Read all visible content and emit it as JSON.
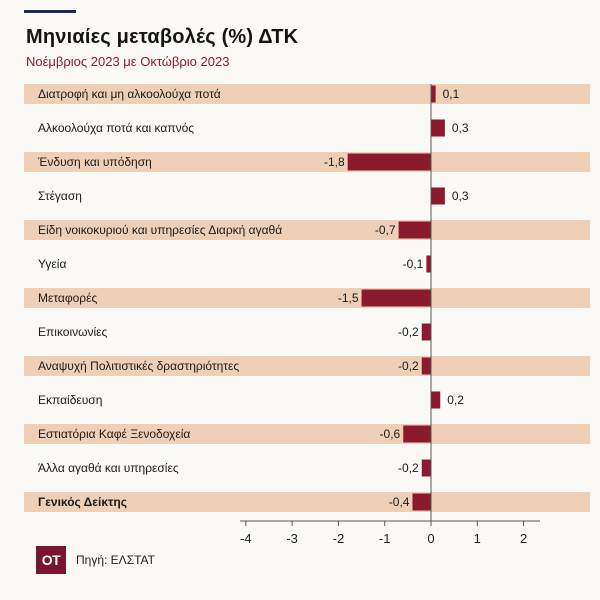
{
  "header": {
    "title": "Μηνιαίες μεταβολές (%) ΔΤΚ",
    "subtitle": "Νοέμβριος 2023 με Οκτώβριο 2023"
  },
  "footer": {
    "logo_text": "OT",
    "source": "Πηγή: ΕΛΣΤΑΤ"
  },
  "colors": {
    "bar": "#8c1a2e",
    "band": "#efcfb6",
    "axis": "#555555"
  },
  "chart_data": {
    "type": "bar",
    "orientation": "horizontal",
    "title": "Μηνιαίες μεταβολές (%) ΔΤΚ",
    "subtitle": "Νοέμβριος 2023 με Οκτώβριο 2023",
    "categories": [
      "Διατροφή και μη αλκοολούχα ποτά",
      "Αλκοολούχα ποτά και καπνός",
      "Ένδυση και υπόδηση",
      "Στέγαση",
      "Είδη νοικοκυριού και υπηρεσίες   Διαρκή αγαθά",
      "Υγεία",
      "Μεταφορές",
      "Επικοινωνίες",
      "Αναψυχή  Πολιτιστικές δραστηριότητες",
      "Εκπαίδευση",
      "Εστιατόρια   Καφέ   Ξενοδοχεία",
      "Άλλα αγαθά και υπηρεσίες",
      "Γενικός Δείκτης"
    ],
    "values": [
      0.1,
      0.3,
      -1.8,
      0.3,
      -0.7,
      -0.1,
      -1.5,
      -0.2,
      -0.2,
      0.2,
      -0.6,
      -0.2,
      -0.4
    ],
    "value_labels": [
      "0,1",
      "0,3",
      "-1,8",
      "0,3",
      "-0,7",
      "-0,1",
      "-1,5",
      "-0,2",
      "-0,2",
      "0,2",
      "-0,6",
      "-0,2",
      "-0,4"
    ],
    "bold_category": "Γενικός Δείκτης",
    "xlim": [
      -4,
      2
    ],
    "xticks": [
      -4,
      -3,
      -2,
      -1,
      0,
      1,
      2
    ],
    "xtick_labels": [
      "-4",
      "-3",
      "-2",
      "-1",
      "0",
      "1",
      "2"
    ],
    "grid": false,
    "legend": "none"
  }
}
